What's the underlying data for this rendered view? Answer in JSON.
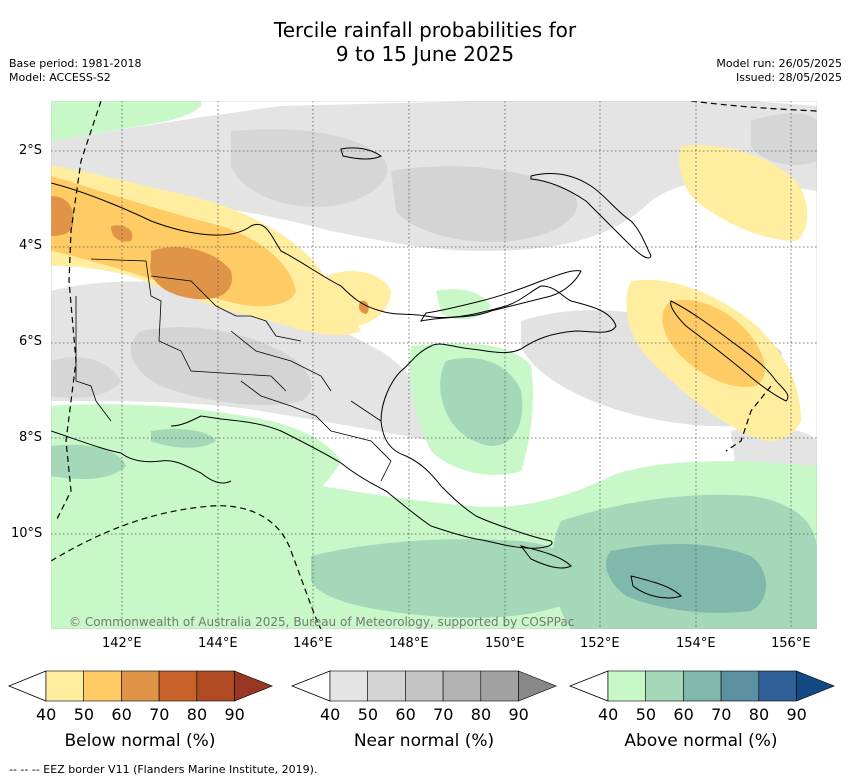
{
  "title_line1": "Tercile rainfall probabilities for",
  "title_line2": "9 to 15 June 2025",
  "base_period": "Base period: 1981-2018",
  "model": "Model: ACCESS-S2",
  "model_run": "Model run: 26/05/2025",
  "issued": "Issued: 28/05/2025",
  "copyright": "© Commonwealth of Australia 2025, Bureau of Meteorology, supported by COSPPac",
  "lat_labels": [
    "2°S",
    "4°S",
    "6°S",
    "8°S",
    "10°S"
  ],
  "lon_labels": [
    "142°E",
    "144°E",
    "146°E",
    "148°E",
    "150°E",
    "152°E",
    "154°E",
    "156°E"
  ],
  "colorbars": [
    {
      "label": "Below normal (%)",
      "ticks": [
        "40",
        "50",
        "60",
        "70",
        "80",
        "90"
      ],
      "colors": [
        "#ffeda0",
        "#fecb64",
        "#e09448",
        "#c8622a",
        "#b04a22",
        "#983822"
      ]
    },
    {
      "label": "Near normal (%)",
      "ticks": [
        "40",
        "50",
        "60",
        "70",
        "80",
        "90"
      ],
      "colors": [
        "#e4e4e4",
        "#d4d4d4",
        "#c4c4c4",
        "#b2b2b2",
        "#a2a2a2",
        "#888888"
      ]
    },
    {
      "label": "Above normal (%)",
      "ticks": [
        "40",
        "50",
        "60",
        "70",
        "80",
        "90"
      ],
      "colors": [
        "#c8f8c8",
        "#a4d8b8",
        "#80b8ac",
        "#5a90a0",
        "#2e5f96",
        "#124b84"
      ]
    }
  ],
  "footer": "--  --  -- EEZ border V11 (Flanders Marine Institute, 2019)."
}
